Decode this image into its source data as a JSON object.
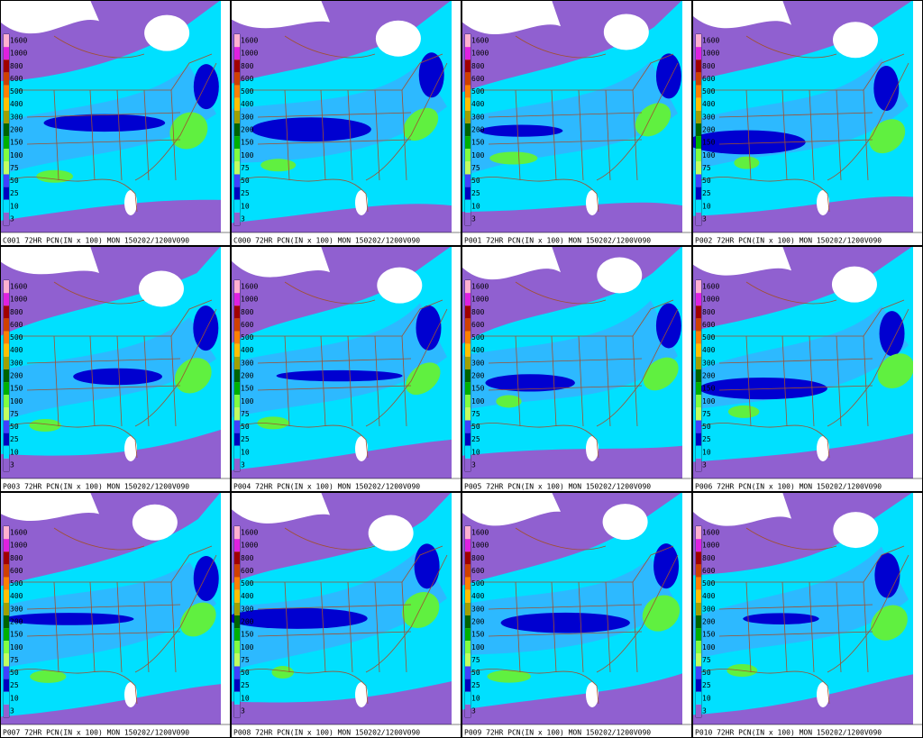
{
  "legend_levels": [
    "1600",
    "1000",
    "800",
    "600",
    "500",
    "400",
    "300",
    "200",
    "150",
    "100",
    "75",
    "50",
    "25",
    "10",
    "3"
  ],
  "panels": [
    {
      "caption": "C001 72HR PCN(IN x 100) MON 150202/1200V090"
    },
    {
      "caption": "C000 72HR PCN(IN x 100) MON 150202/1200V090"
    },
    {
      "caption": "P001 72HR PCN(IN x 100) MON 150202/1200V090"
    },
    {
      "caption": "P002 72HR PCN(IN x 100) MON 150202/1200V090"
    },
    {
      "caption": "P003 72HR PCN(IN x 100) MON 150202/1200V090"
    },
    {
      "caption": "P004 72HR PCN(IN x 100) MON 150202/1200V090"
    },
    {
      "caption": "P005 72HR PCN(IN x 100) MON 150202/1200V090"
    },
    {
      "caption": "P006 72HR PCN(IN x 100) MON 150202/1200V090"
    },
    {
      "caption": "P007 72HR PCN(IN x 100) MON 150202/1200V090"
    },
    {
      "caption": "P008 72HR PCN(IN x 100) MON 150202/1200V090"
    },
    {
      "caption": "P009 72HR PCN(IN x 100) MON 150202/1200V090"
    },
    {
      "caption": "P010 72HR PCN(IN x 100) MON 150202/1200V090"
    }
  ]
}
